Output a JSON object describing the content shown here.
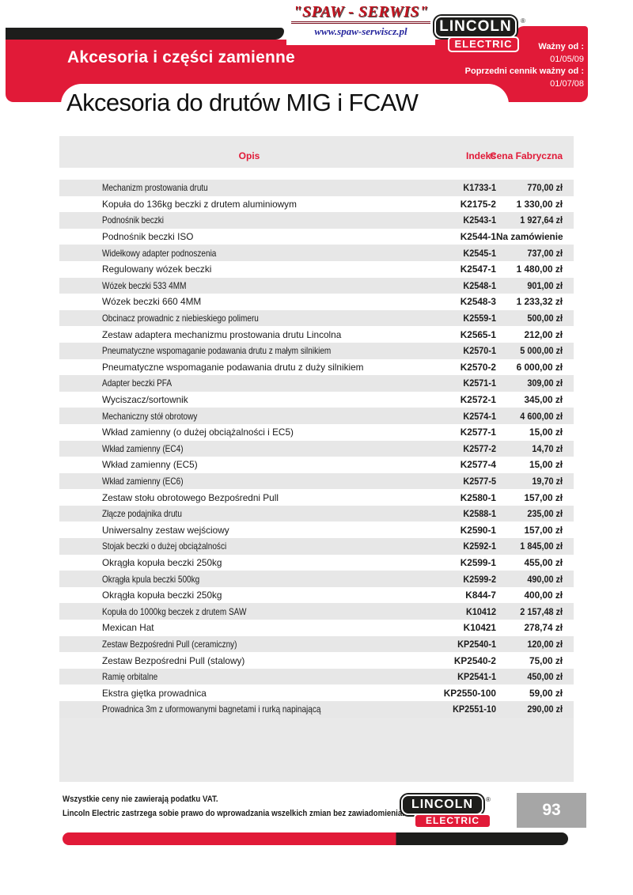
{
  "header": {
    "supplier": {
      "name": "\"SPAW - SERWIS\"",
      "url": "www.spaw-serwiscz.pl"
    },
    "brand": {
      "line1": "LINCOLN",
      "line2": "ELECTRIC",
      "registered": "®"
    },
    "validity": {
      "label_current": "Ważny od :",
      "date_current": "01/05/09",
      "label_previous": "Poprzedni cennik ważny od :",
      "date_previous": "01/07/08"
    },
    "section_title": "Akcesoria i części zamienne",
    "page_title": "Akcesoria do drutów MIG i FCAW"
  },
  "table": {
    "columns": {
      "description": "Opis",
      "index": "Indeks",
      "price": "Cena Fabryczna"
    },
    "rows": [
      {
        "description": "Mechanizm prostowania drutu",
        "index": "K1733-1",
        "price": "770,00 zł"
      },
      {
        "description": "Kopuła do 136kg beczki z drutem aluminiowym",
        "index": "K2175-2",
        "price": "1 330,00 zł"
      },
      {
        "description": "Podnośnik beczki",
        "index": "K2543-1",
        "price": "1 927,64 zł"
      },
      {
        "description": "Podnośnik beczki ISO",
        "index": "K2544-1",
        "price": "Na zamówienie"
      },
      {
        "description": "Widełkowy adapter podnoszenia",
        "index": "K2545-1",
        "price": "737,00 zł"
      },
      {
        "description": "Regulowany wózek beczki",
        "index": "K2547-1",
        "price": "1 480,00 zł"
      },
      {
        "description": "Wózek beczki 533 4MM",
        "index": "K2548-1",
        "price": "901,00 zł"
      },
      {
        "description": "Wózek beczki 660 4MM",
        "index": "K2548-3",
        "price": "1 233,32 zł"
      },
      {
        "description": "Obcinacz prowadnic z niebieskiego polimeru",
        "index": "K2559-1",
        "price": "500,00 zł"
      },
      {
        "description": "Zestaw adaptera mechanizmu prostowania drutu Lincolna",
        "index": "K2565-1",
        "price": "212,00 zł"
      },
      {
        "description": "Pneumatyczne wspomaganie podawania drutu z małym silnikiem",
        "index": "K2570-1",
        "price": "5 000,00 zł"
      },
      {
        "description": "Pneumatyczne wspomaganie podawania drutu z duży silnikiem",
        "index": "K2570-2",
        "price": "6 000,00 zł"
      },
      {
        "description": "Adapter beczki PFA",
        "index": "K2571-1",
        "price": "309,00 zł"
      },
      {
        "description": "Wyciszacz/sortownik",
        "index": "K2572-1",
        "price": "345,00 zł"
      },
      {
        "description": "Mechaniczny stół obrotowy",
        "index": "K2574-1",
        "price": "4 600,00 zł"
      },
      {
        "description": "Wkład zamienny (o dużej obciążalności i EC5)",
        "index": "K2577-1",
        "price": "15,00 zł"
      },
      {
        "description": "Wkład zamienny (EC4)",
        "index": "K2577-2",
        "price": "14,70 zł"
      },
      {
        "description": "Wkład zamienny (EC5)",
        "index": "K2577-4",
        "price": "15,00 zł"
      },
      {
        "description": "Wkład zamienny (EC6)",
        "index": "K2577-5",
        "price": "19,70 zł"
      },
      {
        "description": "Zestaw stołu obrotowego Bezpośredni Pull",
        "index": "K2580-1",
        "price": "157,00 zł"
      },
      {
        "description": "Złącze podajnika drutu",
        "index": "K2588-1",
        "price": "235,00 zł"
      },
      {
        "description": "Uniwersalny zestaw wejściowy",
        "index": "K2590-1",
        "price": "157,00 zł"
      },
      {
        "description": "Stojak beczki o dużej obciążalności",
        "index": "K2592-1",
        "price": "1 845,00 zł"
      },
      {
        "description": "Okrągła kopuła beczki 250kg",
        "index": "K2599-1",
        "price": "455,00 zł"
      },
      {
        "description": "Okrągła kpula beczki 500kg",
        "index": "K2599-2",
        "price": "490,00 zł"
      },
      {
        "description": "Okrągła kopuła beczki 250kg",
        "index": "K844-7",
        "price": "400,00 zł"
      },
      {
        "description": "Kopuła do 1000kg beczek z drutem SAW",
        "index": "K10412",
        "price": "2 157,48 zł"
      },
      {
        "description": "Mexican Hat",
        "index": "K10421",
        "price": "278,74 zł"
      },
      {
        "description": "Zestaw Bezpośredni Pull (ceramiczny)",
        "index": "KP2540-1",
        "price": "120,00 zł"
      },
      {
        "description": "Zestaw Bezpośredni Pull (stalowy)",
        "index": "KP2540-2",
        "price": "75,00 zł"
      },
      {
        "description": "Ramię orbitalne",
        "index": "KP2541-1",
        "price": "450,00 zł"
      },
      {
        "description": "Ekstra giętka prowadnica",
        "index": "KP2550-100",
        "price": "59,00 zł"
      },
      {
        "description": "Prowadnica 3m z uformowanymi bagnetami i rurką napinającą",
        "index": "KP2551-10",
        "price": "290,00 zł"
      }
    ]
  },
  "footer": {
    "note1": "Wszystkie ceny nie zawierają podatku VAT.",
    "note2": "Lincoln Electric zastrzega sobie prawo do wprowadzania wszelkich zmian bez zawiadomienia.",
    "brand": {
      "line1": "LINCOLN",
      "line2": "ELECTRIC",
      "registered": "®"
    },
    "page_number": "93"
  },
  "colors": {
    "accent_red": "#e11a38",
    "bar_black": "#1d1d1b",
    "row_gray": "#e7e7e7",
    "page_box_gray": "#a6a6a6",
    "supplier_logo_red": "#c41420",
    "url_navy": "#26269d"
  }
}
